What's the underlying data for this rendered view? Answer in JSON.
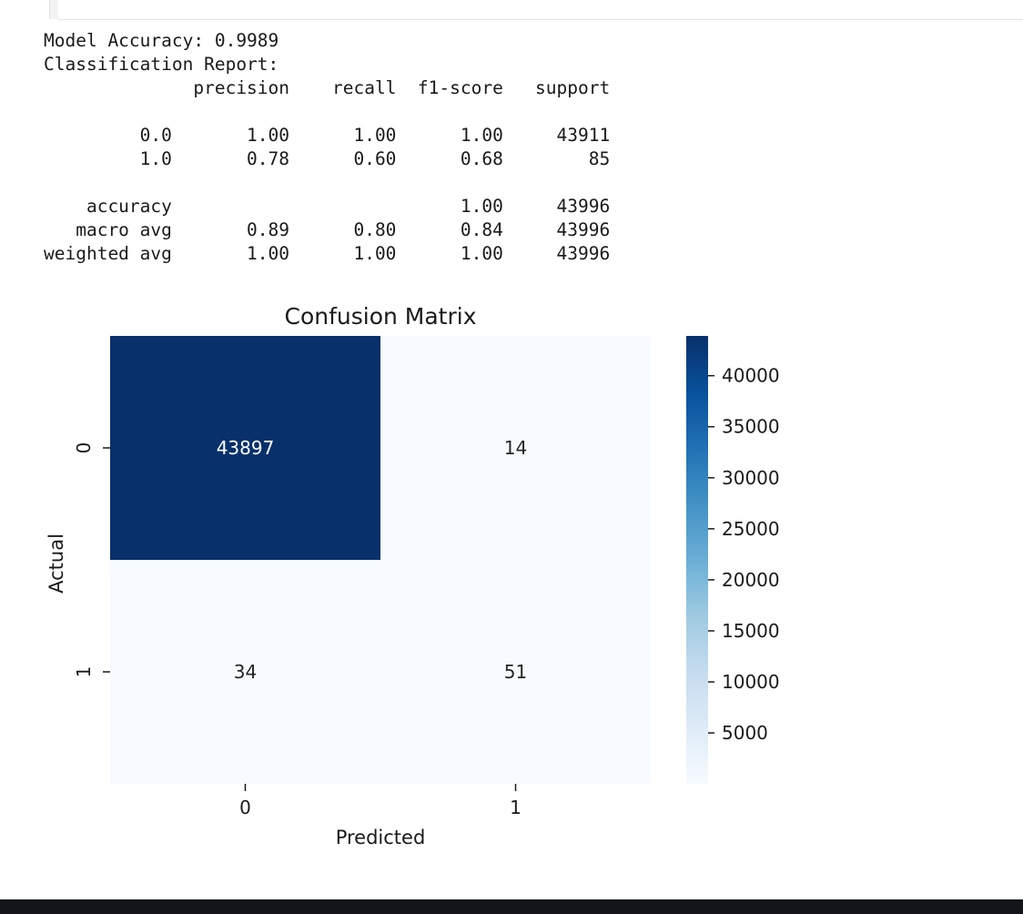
{
  "output": {
    "lines": [
      "Model Accuracy: 0.9989",
      "Classification Report:",
      "              precision    recall  f1-score   support",
      "",
      "         0.0       1.00      1.00      1.00     43911",
      "         1.0       0.78      0.60      0.68        85",
      "",
      "    accuracy                           1.00     43996",
      "   macro avg       0.89      0.80      0.84     43996",
      "weighted avg       1.00      1.00      1.00     43996"
    ]
  },
  "chart_data": {
    "type": "heatmap",
    "title": "Confusion Matrix",
    "xlabel": "Predicted",
    "ylabel": "Actual",
    "x_categories": [
      "0",
      "1"
    ],
    "y_categories": [
      "0",
      "1"
    ],
    "matrix": [
      [
        43897,
        14
      ],
      [
        34,
        51
      ]
    ],
    "annotations": [
      [
        "43897",
        "14"
      ],
      [
        "34",
        "51"
      ]
    ],
    "colormap": "Blues",
    "color_low": "#f7fbff",
    "color_high": "#08306b",
    "vmin": 14,
    "vmax": 43897,
    "colorbar_ticks": [
      40000,
      35000,
      30000,
      25000,
      20000,
      15000,
      10000,
      5000
    ]
  }
}
